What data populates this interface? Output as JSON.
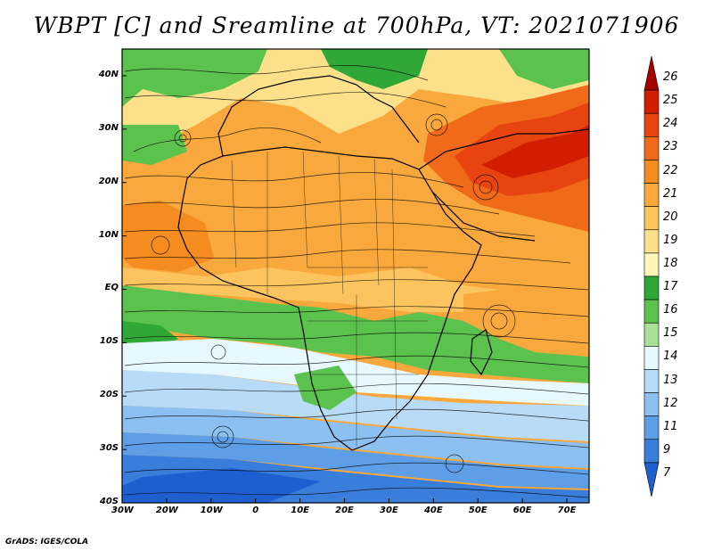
{
  "title": "WBPT [C] and Sreamline at 700hPa, VT: 2021071906",
  "credit": "GrADS: IGES/COLA",
  "map": {
    "lon_range": [
      -30,
      75
    ],
    "lat_range": [
      -40,
      45
    ],
    "lat_ticks": [
      {
        "value": 40,
        "label": "40N"
      },
      {
        "value": 30,
        "label": "30N"
      },
      {
        "value": 20,
        "label": "20N"
      },
      {
        "value": 10,
        "label": "10N"
      },
      {
        "value": 0,
        "label": "EQ"
      },
      {
        "value": -10,
        "label": "10S"
      },
      {
        "value": -20,
        "label": "20S"
      },
      {
        "value": -30,
        "label": "30S"
      },
      {
        "value": -40,
        "label": "40S"
      }
    ],
    "lon_ticks": [
      {
        "value": -30,
        "label": "30W"
      },
      {
        "value": -20,
        "label": "20W"
      },
      {
        "value": -10,
        "label": "10W"
      },
      {
        "value": 0,
        "label": "0"
      },
      {
        "value": 10,
        "label": "10E"
      },
      {
        "value": 20,
        "label": "20E"
      },
      {
        "value": 30,
        "label": "30E"
      },
      {
        "value": 40,
        "label": "40E"
      },
      {
        "value": 50,
        "label": "50E"
      },
      {
        "value": 60,
        "label": "60E"
      },
      {
        "value": 70,
        "label": "70E"
      }
    ]
  },
  "colorbar": {
    "levels": [
      {
        "label": "26",
        "color": "#a50000"
      },
      {
        "label": "25",
        "color": "#d21e00"
      },
      {
        "label": "24",
        "color": "#e84410"
      },
      {
        "label": "23",
        "color": "#f06a1a"
      },
      {
        "label": "22",
        "color": "#f58c20"
      },
      {
        "label": "21",
        "color": "#f8a83c"
      },
      {
        "label": "20",
        "color": "#fbc45e"
      },
      {
        "label": "19",
        "color": "#fde18a"
      },
      {
        "label": "18",
        "color": "#fff5b8"
      },
      {
        "label": "17",
        "color": "#2fa838"
      },
      {
        "label": "16",
        "color": "#5cc24e"
      },
      {
        "label": "15",
        "color": "#a8e09a"
      },
      {
        "label": "14",
        "color": "#e8f8ff"
      },
      {
        "label": "13",
        "color": "#b8dcf8"
      },
      {
        "label": "12",
        "color": "#8cc0f0"
      },
      {
        "label": "11",
        "color": "#5e9ee6"
      },
      {
        "label": "9",
        "color": "#3a7edc"
      },
      {
        "label": "7",
        "color": "#1e5fd0"
      }
    ]
  }
}
